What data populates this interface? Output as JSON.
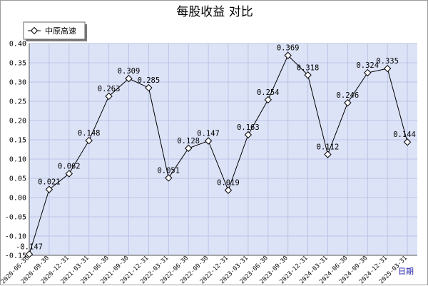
{
  "chart_data": {
    "type": "line",
    "title": "每股收益  对比",
    "xlabel": "日期",
    "ylabel": "",
    "ylim": [
      -0.15,
      0.4
    ],
    "yticks": [
      "-0.15",
      "-0.10",
      "-0.05",
      "0.00",
      "0.05",
      "0.10",
      "0.15",
      "0.20",
      "0.25",
      "0.30",
      "0.35",
      "0.40"
    ],
    "grid": true,
    "legend": "top-left",
    "categories": [
      "2020-06-30",
      "2020-09-30",
      "2020-12-31",
      "2021-03-31",
      "2021-06-30",
      "2021-09-30",
      "2021-12-31",
      "2022-03-31",
      "2022-06-30",
      "2022-09-30",
      "2022-12-31",
      "2023-03-31",
      "2023-06-30",
      "2023-09-30",
      "2023-12-31",
      "2024-03-31",
      "2024-06-30",
      "2024-09-30",
      "2024-12-31",
      "2025-03-31"
    ],
    "series": [
      {
        "name": "中原高速",
        "values": [
          -0.147,
          0.021,
          0.062,
          0.148,
          0.263,
          0.309,
          0.285,
          0.051,
          0.128,
          0.147,
          0.019,
          0.163,
          0.254,
          0.369,
          0.318,
          0.112,
          0.246,
          0.324,
          0.335,
          0.144
        ],
        "labels": [
          "-0.147",
          "0.021",
          "0.062",
          "0.148",
          "0.263",
          "0.309",
          "0.285",
          "0.051",
          "0.128",
          "0.147",
          "0.019",
          "0.163",
          "0.254",
          "0.369",
          "0.318",
          "0.112",
          "0.246",
          "0.324",
          "0.335",
          "0.144"
        ]
      }
    ],
    "colors": {
      "plot_background": "#dde3f7",
      "grid": "#b9c3e4",
      "line": "#000000",
      "xlabel": "#1a1aa8"
    }
  }
}
